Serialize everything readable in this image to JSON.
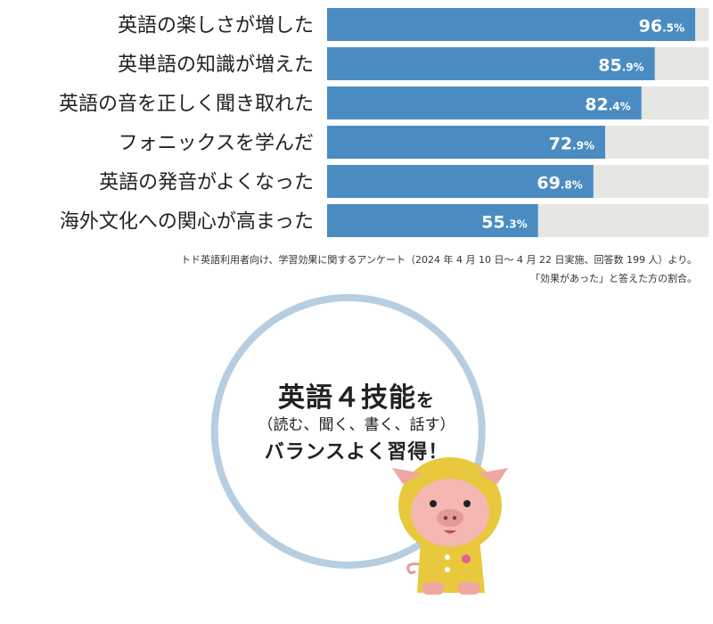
{
  "chart_data": {
    "type": "bar",
    "orientation": "horizontal",
    "categories": [
      "英語の楽しさが増した",
      "英単語の知識が増えた",
      "英語の音を正しく聞き取れた",
      "フォニックスを学んだ",
      "英語の発音がよくなった",
      "海外文化への関心が高まった"
    ],
    "values": [
      96.5,
      85.9,
      82.4,
      72.9,
      69.8,
      55.3
    ],
    "value_labels": [
      {
        "int": "96",
        "dec": ".5%"
      },
      {
        "int": "85",
        "dec": ".9%"
      },
      {
        "int": "82",
        "dec": ".4%"
      },
      {
        "int": "72",
        "dec": ".9%"
      },
      {
        "int": "69",
        "dec": ".8%"
      },
      {
        "int": "55",
        "dec": ".3%"
      }
    ],
    "xlim": [
      0,
      100
    ],
    "bar_color": "#4a8cc2",
    "track_color": "#e6e6e3"
  },
  "notes": {
    "line1": "トド英語利用者向け、学習効果に関するアンケート（2024 年 4 月 10 日〜 4 月 22 日実施、回答数 199 人）より。",
    "line2": "「効果があった」と答えた方の割合。"
  },
  "promo": {
    "title_main": "英語４技能",
    "title_particle": "を",
    "subtitle": "（読む、聞く、書く、話す）",
    "bottom": "バランスよく習得！"
  },
  "colors": {
    "ring": "#b7cde0",
    "mascot_raincoat": "#e8c83c",
    "mascot_skin": "#eea7a3"
  },
  "icons": {
    "mascot": "pig-mascot-in-yellow-raincoat-icon"
  }
}
